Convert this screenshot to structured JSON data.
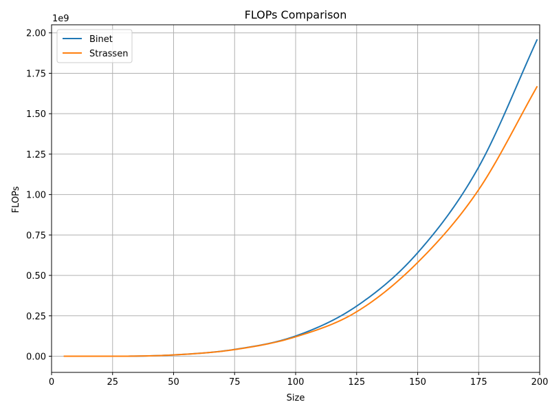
{
  "chart_data": {
    "type": "line",
    "title": "FLOPs Comparison",
    "xlabel": "Size",
    "ylabel": "FLOPs",
    "y_offset_label": "1e9",
    "xlim": [
      0,
      200
    ],
    "ylim": [
      -0.1,
      2.05
    ],
    "x_ticks": [
      0,
      25,
      50,
      75,
      100,
      125,
      150,
      175,
      200
    ],
    "x_tick_labels": [
      "0",
      "25",
      "50",
      "75",
      "100",
      "125",
      "150",
      "175",
      "200"
    ],
    "y_ticks": [
      0,
      0.25,
      0.5,
      0.75,
      1.0,
      1.25,
      1.5,
      1.75,
      2.0
    ],
    "y_tick_labels": [
      "0.00",
      "0.25",
      "0.50",
      "0.75",
      "1.00",
      "1.25",
      "1.50",
      "1.75",
      "2.00"
    ],
    "grid": true,
    "legend_position": "top-left",
    "x": [
      5,
      25,
      50,
      75,
      100,
      125,
      150,
      175,
      199
    ],
    "series": [
      {
        "name": "Binet",
        "color": "#1f77b4",
        "values": [
          0.0,
          0.0,
          0.008,
          0.042,
          0.125,
          0.31,
          0.64,
          1.17,
          1.96
        ]
      },
      {
        "name": "Strassen",
        "color": "#ff7f0e",
        "values": [
          0.0,
          0.0,
          0.008,
          0.041,
          0.12,
          0.275,
          0.58,
          1.03,
          1.67
        ]
      }
    ]
  }
}
